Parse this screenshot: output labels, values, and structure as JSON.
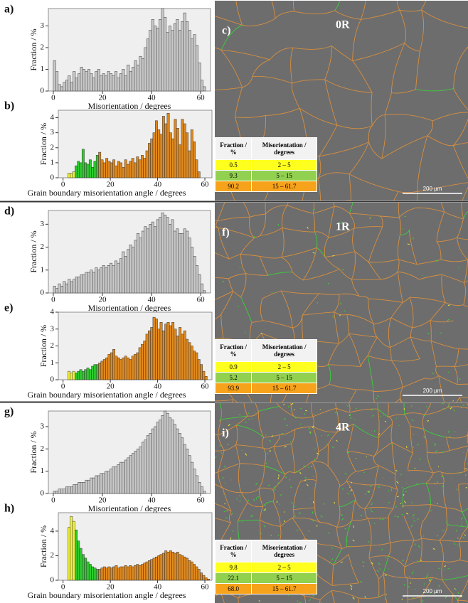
{
  "chart_data": [
    {
      "type": "histogram",
      "label": "a)",
      "xlabel": "Misorientation / degrees",
      "ylabel": "Fraction / %",
      "color": "#c9c9c9",
      "bins": [
        0,
        1,
        2,
        3,
        4,
        5,
        6,
        7,
        8,
        9,
        10,
        11,
        12,
        13,
        14,
        15,
        16,
        17,
        18,
        19,
        20,
        21,
        22,
        23,
        24,
        25,
        26,
        27,
        28,
        29,
        30,
        31,
        32,
        33,
        34,
        35,
        36,
        37,
        38,
        39,
        40,
        41,
        42,
        43,
        44,
        45,
        46,
        47,
        48,
        49,
        50,
        51,
        52,
        53,
        54,
        55,
        56,
        57,
        58,
        59,
        60,
        61,
        62
      ],
      "values": [
        1.4,
        0.9,
        0.3,
        0.2,
        0.4,
        0.5,
        0.7,
        0.4,
        0.9,
        0.6,
        0.8,
        1.1,
        1.0,
        0.9,
        1.0,
        0.8,
        0.6,
        0.9,
        1.0,
        0.7,
        0.8,
        0.7,
        0.9,
        0.8,
        0.7,
        0.9,
        0.6,
        0.8,
        1.0,
        0.7,
        1.2,
        0.9,
        1.1,
        1.4,
        1.2,
        1.6,
        1.5,
        2.0,
        2.4,
        2.8,
        3.3,
        3.0,
        2.9,
        3.3,
        3.8,
        3.4,
        2.7,
        3.0,
        2.8,
        3.1,
        3.3,
        2.8,
        3.2,
        3.6,
        3.2,
        2.8,
        2.4,
        2.6,
        2.1,
        1.3,
        0.5,
        0.2
      ],
      "xlim": [
        -2,
        64
      ],
      "ylim": [
        0,
        3.8
      ],
      "xticks": [
        0,
        20,
        40,
        60
      ],
      "yticks": [
        0,
        1,
        2,
        3
      ]
    },
    {
      "type": "histogram",
      "label": "b)",
      "xlabel": "Grain boundary misorientation angle / degrees",
      "ylabel": "Fraction / %",
      "series": [
        {
          "color": "#f2f23a",
          "bins": [
            2,
            3,
            4,
            5
          ],
          "values": [
            0.3,
            0.3,
            0.4
          ]
        },
        {
          "color": "#2fcc2f",
          "bins": [
            5,
            6,
            7,
            8,
            9,
            10,
            11,
            12,
            13,
            14,
            15
          ],
          "values": [
            0.8,
            1.1,
            1.0,
            1.9,
            1.0,
            0.9,
            1.2,
            0.7,
            1.1,
            1.5
          ]
        },
        {
          "color": "#e0891e",
          "bins": [
            15,
            16,
            17,
            18,
            19,
            20,
            21,
            22,
            23,
            24,
            25,
            26,
            27,
            28,
            29,
            30,
            31,
            32,
            33,
            34,
            35,
            36,
            37,
            38,
            39,
            40,
            41,
            42,
            43,
            44,
            45,
            46,
            47,
            48,
            49,
            50,
            51,
            52,
            53,
            54,
            55,
            56,
            57,
            58
          ],
          "values": [
            1.7,
            1.2,
            1.0,
            1.3,
            1.1,
            1.0,
            1.2,
            0.8,
            1.1,
            1.0,
            0.7,
            1.2,
            0.9,
            1.1,
            1.3,
            1.0,
            1.4,
            1.2,
            1.5,
            1.3,
            1.8,
            2.3,
            2.6,
            3.0,
            3.8,
            3.2,
            2.9,
            4.1,
            3.6,
            4.3,
            3.0,
            2.6,
            3.9,
            3.3,
            2.2,
            3.9,
            3.6,
            3.0,
            1.8,
            3.2,
            2.4,
            1.2,
            0.4
          ]
        }
      ],
      "xlim": [
        -2,
        63
      ],
      "ylim": [
        0,
        4.5
      ],
      "xticks": [
        0,
        20,
        40,
        60
      ],
      "yticks": [
        0,
        1,
        2,
        3,
        4
      ]
    },
    {
      "type": "histogram",
      "label": "d)",
      "xlabel": "Misorientation / degrees",
      "ylabel": "Fraction / %",
      "color": "#c9c9c9",
      "bins": [
        0,
        1,
        2,
        3,
        4,
        5,
        6,
        7,
        8,
        9,
        10,
        11,
        12,
        13,
        14,
        15,
        16,
        17,
        18,
        19,
        20,
        21,
        22,
        23,
        24,
        25,
        26,
        27,
        28,
        29,
        30,
        31,
        32,
        33,
        34,
        35,
        36,
        37,
        38,
        39,
        40,
        41,
        42,
        43,
        44,
        45,
        46,
        47,
        48,
        49,
        50,
        51,
        52,
        53,
        54,
        55,
        56,
        57,
        58,
        59,
        60,
        61,
        62
      ],
      "values": [
        0.3,
        0.2,
        0.4,
        0.3,
        0.5,
        0.4,
        0.6,
        0.5,
        0.6,
        0.7,
        0.7,
        0.8,
        0.8,
        0.9,
        0.9,
        1.0,
        0.9,
        1.1,
        1.0,
        1.1,
        1.2,
        1.1,
        1.2,
        1.3,
        1.2,
        1.4,
        1.3,
        1.5,
        1.8,
        1.6,
        1.9,
        2.1,
        2.0,
        2.3,
        2.6,
        2.4,
        2.7,
        2.9,
        2.8,
        3.0,
        3.1,
        2.9,
        3.2,
        3.3,
        3.5,
        3.4,
        3.3,
        3.0,
        3.2,
        2.7,
        2.8,
        2.6,
        2.6,
        2.8,
        2.7,
        2.4,
        2.0,
        1.6,
        1.2,
        0.8,
        0.4,
        0.1
      ],
      "xlim": [
        -2,
        64
      ],
      "ylim": [
        0,
        3.6
      ],
      "xticks": [
        0,
        20,
        40,
        60
      ],
      "yticks": [
        0,
        1,
        2,
        3
      ]
    },
    {
      "type": "histogram",
      "label": "e)",
      "xlabel": "Grain boundary misorientation angle / degrees",
      "ylabel": "Fraction / %",
      "series": [
        {
          "color": "#f2f23a",
          "bins": [
            2,
            3,
            4,
            5
          ],
          "values": [
            0.5,
            0.4,
            0.5
          ]
        },
        {
          "color": "#2fcc2f",
          "bins": [
            5,
            6,
            7,
            8,
            9,
            10,
            11,
            12,
            13,
            14,
            15
          ],
          "values": [
            0.4,
            0.5,
            0.6,
            0.5,
            0.6,
            0.7,
            0.6,
            0.8,
            0.9,
            0.9
          ]
        },
        {
          "color": "#e0891e",
          "bins": [
            15,
            16,
            17,
            18,
            19,
            20,
            21,
            22,
            23,
            24,
            25,
            26,
            27,
            28,
            29,
            30,
            31,
            32,
            33,
            34,
            35,
            36,
            37,
            38,
            39,
            40,
            41,
            42,
            43,
            44,
            45,
            46,
            47,
            48,
            49,
            50,
            51,
            52,
            53,
            54,
            55,
            56,
            57,
            58,
            59,
            60,
            61
          ],
          "values": [
            1.0,
            1.1,
            1.2,
            1.3,
            1.5,
            1.6,
            1.8,
            1.4,
            1.3,
            1.2,
            1.3,
            1.4,
            1.3,
            1.2,
            1.4,
            1.5,
            1.6,
            1.9,
            2.1,
            2.3,
            2.7,
            2.9,
            3.1,
            3.7,
            3.6,
            3.0,
            3.4,
            2.9,
            3.3,
            3.4,
            3.2,
            3.4,
            3.0,
            2.6,
            3.1,
            2.7,
            2.9,
            2.4,
            2.2,
            2.0,
            1.7,
            1.6,
            1.2,
            0.9,
            0.5,
            0.2
          ]
        }
      ],
      "xlim": [
        -2,
        63
      ],
      "ylim": [
        0,
        4
      ],
      "xticks": [
        0,
        20,
        40,
        60
      ],
      "yticks": [
        0,
        1,
        2,
        3,
        4
      ]
    },
    {
      "type": "histogram",
      "label": "g)",
      "xlabel": "Misorientation / degrees",
      "ylabel": "Fraction / %",
      "color": "#c9c9c9",
      "bins": [
        0,
        1,
        2,
        3,
        4,
        5,
        6,
        7,
        8,
        9,
        10,
        11,
        12,
        13,
        14,
        15,
        16,
        17,
        18,
        19,
        20,
        21,
        22,
        23,
        24,
        25,
        26,
        27,
        28,
        29,
        30,
        31,
        32,
        33,
        34,
        35,
        36,
        37,
        38,
        39,
        40,
        41,
        42,
        43,
        44,
        45,
        46,
        47,
        48,
        49,
        50,
        51,
        52,
        53,
        54,
        55,
        56,
        57,
        58,
        59,
        60,
        61,
        62
      ],
      "values": [
        0.1,
        0.1,
        0.2,
        0.2,
        0.2,
        0.3,
        0.3,
        0.3,
        0.4,
        0.4,
        0.5,
        0.5,
        0.5,
        0.6,
        0.6,
        0.7,
        0.7,
        0.8,
        0.8,
        0.9,
        0.9,
        1.0,
        1.0,
        1.1,
        1.2,
        1.2,
        1.3,
        1.4,
        1.4,
        1.5,
        1.6,
        1.7,
        1.8,
        1.9,
        2.0,
        2.1,
        2.3,
        2.4,
        2.6,
        2.7,
        2.9,
        3.0,
        3.2,
        3.3,
        3.5,
        3.7,
        3.6,
        3.4,
        3.3,
        3.1,
        2.9,
        2.7,
        2.5,
        2.2,
        2.0,
        1.7,
        1.4,
        1.1,
        0.8,
        0.5,
        0.3,
        0.1
      ],
      "xlim": [
        -2,
        64
      ],
      "ylim": [
        0,
        3.7
      ],
      "xticks": [
        0,
        20,
        40,
        60
      ],
      "yticks": [
        0,
        1,
        2,
        3
      ]
    },
    {
      "type": "histogram",
      "label": "h)",
      "xlabel": "Grain boundary misorientation angle / degrees",
      "ylabel": "Fraction / %",
      "series": [
        {
          "color": "#f2f23a",
          "bins": [
            2,
            3,
            4,
            5
          ],
          "values": [
            4.3,
            5.2,
            4.8
          ]
        },
        {
          "color": "#2fcc2f",
          "bins": [
            5,
            6,
            7,
            8,
            9,
            10,
            11,
            12,
            13,
            14,
            15
          ],
          "values": [
            4.1,
            3.2,
            2.6,
            2.1,
            1.8,
            1.5,
            1.3,
            1.1,
            1.0,
            0.9
          ]
        },
        {
          "color": "#e0891e",
          "bins": [
            15,
            16,
            17,
            18,
            19,
            20,
            21,
            22,
            23,
            24,
            25,
            26,
            27,
            28,
            29,
            30,
            31,
            32,
            33,
            34,
            35,
            36,
            37,
            38,
            39,
            40,
            41,
            42,
            43,
            44,
            45,
            46,
            47,
            48,
            49,
            50,
            51,
            52,
            53,
            54,
            55,
            56,
            57,
            58,
            59,
            60,
            61,
            62
          ],
          "values": [
            0.9,
            1.0,
            1.1,
            1.0,
            1.1,
            1.0,
            1.1,
            1.2,
            1.0,
            1.1,
            1.1,
            1.2,
            1.1,
            1.2,
            1.1,
            1.2,
            1.3,
            1.2,
            1.3,
            1.4,
            1.5,
            1.6,
            1.7,
            1.8,
            1.9,
            2.0,
            2.1,
            2.2,
            2.4,
            2.3,
            2.4,
            2.3,
            2.2,
            2.3,
            2.1,
            2.0,
            1.9,
            1.8,
            1.6,
            1.5,
            1.3,
            1.1,
            0.9,
            0.6,
            0.4,
            0.2,
            0.1
          ]
        }
      ],
      "xlim": [
        -2,
        63
      ],
      "ylim": [
        0,
        5.5
      ],
      "xticks": [
        0,
        20,
        40,
        60
      ],
      "yticks": [
        0,
        2,
        4
      ]
    }
  ],
  "maps": [
    {
      "label": "c)",
      "title": "0R",
      "scale_bar": "200 µm",
      "table": {
        "header": [
          "Fraction / %",
          "Misorientation / degrees"
        ],
        "rows": [
          [
            "0.5",
            "2 – 5"
          ],
          [
            "9.3",
            "5 – 15"
          ],
          [
            "90.2",
            "15 – 61.7"
          ]
        ]
      }
    },
    {
      "label": "f)",
      "title": "1R",
      "scale_bar": "200 µm",
      "table": {
        "header": [
          "Fraction / %",
          "Misorientation / degrees"
        ],
        "rows": [
          [
            "0.9",
            "2 – 5"
          ],
          [
            "5.2",
            "5 – 15"
          ],
          [
            "93.9",
            "15 – 61.7"
          ]
        ]
      }
    },
    {
      "label": "i)",
      "title": "4R",
      "scale_bar": "200 µm",
      "table": {
        "header": [
          "Fraction / %",
          "Misorientation / degrees"
        ],
        "rows": [
          [
            "9.8",
            "2 – 5"
          ],
          [
            "22.1",
            "5 – 15"
          ],
          [
            "68.0",
            "15 – 61.7"
          ]
        ]
      }
    }
  ]
}
